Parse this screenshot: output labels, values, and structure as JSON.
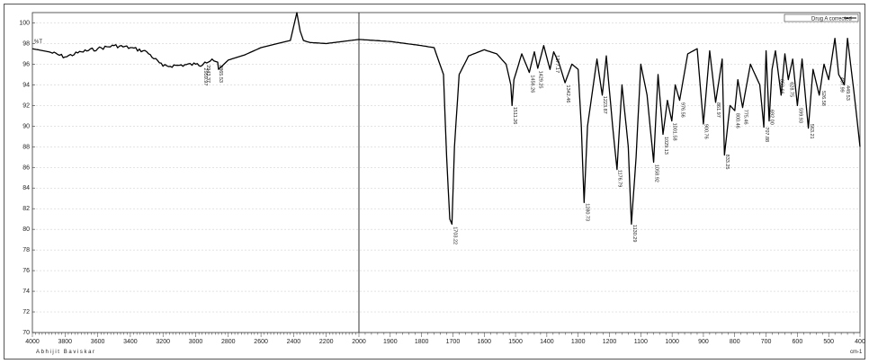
{
  "chart_data": {
    "type": "line",
    "title": "",
    "xlabel": "cm-1",
    "ylabel": "%T",
    "xlim": [
      4000,
      400
    ],
    "ylim": [
      70,
      101
    ],
    "x_ticks": [
      4000,
      3800,
      3600,
      3400,
      3200,
      3000,
      2800,
      2600,
      2400,
      2200,
      2000,
      1900,
      1800,
      1700,
      1600,
      1500,
      1400,
      1300,
      1200,
      1100,
      1000,
      900,
      800,
      700,
      600,
      500,
      400
    ],
    "x_tick_labels": [
      "4000",
      "3800",
      "3600",
      "3400",
      "3200",
      "3000",
      "2800",
      "2600",
      "2400",
      "2200",
      "2000",
      "1900",
      "1800",
      "1700",
      "1600",
      "1500",
      "1400",
      "1300",
      "1200",
      "1100",
      "1000",
      "900",
      "800",
      "700",
      "600",
      "500",
      "400"
    ],
    "y_ticks": [
      70,
      72,
      74,
      76,
      78,
      80,
      82,
      84,
      86,
      88,
      90,
      92,
      94,
      96,
      98,
      100
    ],
    "y_tick_labels": [
      "70",
      "72",
      "74",
      "76",
      "78",
      "80",
      "82",
      "84",
      "86",
      "88",
      "90",
      "92",
      "94",
      "96",
      "98",
      "100"
    ],
    "grid": true,
    "legend_position": "top-right",
    "series": [
      {
        "name": "Drug A corrected",
        "color": "#000000",
        "x": [
          4000,
          3900,
          3800,
          3700,
          3600,
          3500,
          3400,
          3300,
          3200,
          3100,
          3000,
          2959,
          2943,
          2900,
          2865,
          2860,
          2800,
          2700,
          2600,
          2500,
          2420,
          2380,
          2360,
          2340,
          2300,
          2200,
          2100,
          2000,
          1900,
          1800,
          1760,
          1730,
          1720,
          1710,
          1703,
          1695,
          1680,
          1650,
          1600,
          1560,
          1530,
          1515,
          1511,
          1505,
          1480,
          1456,
          1440,
          1429,
          1410,
          1390,
          1378,
          1360,
          1342,
          1320,
          1300,
          1290,
          1281,
          1270,
          1240,
          1223,
          1210,
          1190,
          1176,
          1160,
          1140,
          1130,
          1115,
          1100,
          1080,
          1059,
          1045,
          1029,
          1015,
          1001,
          990,
          976,
          950,
          920,
          900,
          880,
          861,
          840,
          833,
          815,
          800,
          790,
          775,
          750,
          720,
          707,
          700,
          690,
          681,
          670,
          652,
          640,
          629,
          615,
          600,
          585,
          565,
          550,
          530,
          515,
          500,
          480,
          468,
          450,
          440,
          420,
          400
        ],
        "y": [
          97.5,
          97.2,
          96.7,
          97.2,
          97.5,
          97.8,
          97.6,
          97.2,
          95.8,
          95.9,
          96.0,
          95.9,
          96.2,
          96.5,
          96.2,
          95.5,
          96.4,
          96.9,
          97.6,
          98.0,
          98.3,
          101.0,
          99.2,
          98.3,
          98.1,
          98.0,
          98.2,
          98.4,
          98.2,
          97.8,
          97.6,
          95.0,
          87.0,
          81.0,
          80.5,
          88.0,
          95.0,
          96.8,
          97.4,
          97.0,
          96.0,
          94.0,
          92.0,
          94.5,
          97.0,
          95.2,
          97.2,
          95.6,
          97.8,
          95.5,
          97.2,
          96.0,
          94.2,
          96.0,
          95.5,
          90.0,
          82.6,
          90.0,
          96.5,
          93.0,
          96.8,
          90.0,
          85.8,
          94.0,
          88.0,
          80.5,
          87.0,
          96.0,
          93.0,
          86.5,
          95.0,
          89.2,
          92.5,
          90.5,
          94.0,
          92.5,
          97.0,
          97.5,
          90.2,
          97.3,
          92.3,
          96.5,
          87.2,
          92.0,
          91.5,
          94.5,
          91.8,
          96.0,
          94.0,
          89.9,
          97.3,
          90.5,
          95.5,
          97.3,
          93.0,
          97.0,
          94.5,
          96.5,
          92.0,
          96.5,
          89.8,
          95.5,
          93.0,
          96.0,
          94.5,
          98.5,
          95.0,
          94.0,
          98.5,
          93.5,
          88.0
        ]
      }
    ],
    "peaks": [
      {
        "x": 2959.97,
        "label": "2959.97"
      },
      {
        "x": 2943.37,
        "label": "2943.37"
      },
      {
        "x": 2865.53,
        "label": "2865.53"
      },
      {
        "x": 1703.22,
        "label": "1703.22"
      },
      {
        "x": 1511.26,
        "label": "1511.26"
      },
      {
        "x": 1456.26,
        "label": "1456.26"
      },
      {
        "x": 1429.25,
        "label": "1429.25"
      },
      {
        "x": 1377.17,
        "label": "1377.17"
      },
      {
        "x": 1342.46,
        "label": "1342.46"
      },
      {
        "x": 1280.73,
        "label": "1280.73"
      },
      {
        "x": 1223.87,
        "label": "1223.87"
      },
      {
        "x": 1176.79,
        "label": "1176.79"
      },
      {
        "x": 1130.29,
        "label": "1130.29"
      },
      {
        "x": 1058.92,
        "label": "1058.92"
      },
      {
        "x": 1029.13,
        "label": "1029.13"
      },
      {
        "x": 1001.58,
        "label": "1001.58"
      },
      {
        "x": 976.56,
        "label": "976.56"
      },
      {
        "x": 900.76,
        "label": "900.76"
      },
      {
        "x": 861.97,
        "label": "861.97"
      },
      {
        "x": 833.25,
        "label": "833.25"
      },
      {
        "x": 800.46,
        "label": "800.46"
      },
      {
        "x": 775.46,
        "label": "775.46"
      },
      {
        "x": 707.88,
        "label": "707.88"
      },
      {
        "x": 692.0,
        "label": "692.00"
      },
      {
        "x": 659.66,
        "label": "659.66"
      },
      {
        "x": 628.75,
        "label": "628.75"
      },
      {
        "x": 599.93,
        "label": "599.93"
      },
      {
        "x": 563.21,
        "label": "563.21"
      },
      {
        "x": 526.58,
        "label": "526.58"
      },
      {
        "x": 467.99,
        "label": "467.99"
      },
      {
        "x": 449.53,
        "label": "449.53"
      }
    ],
    "footer_left": "Abhijit Baviskar",
    "x_unit": "cm-1",
    "y_unit": "%T"
  }
}
